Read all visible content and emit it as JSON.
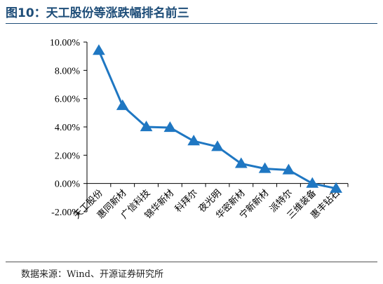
{
  "figure": {
    "title": "图10：天工股份等涨跌幅排名前三",
    "source": "数据来源：Wind、开源证券研究所"
  },
  "colors": {
    "series": "#1F77C2",
    "title": "#1F4E79",
    "axis": "#000000"
  },
  "chart_data": {
    "type": "line",
    "title": "图10：天工股份等涨跌幅排名前三",
    "xlabel": "",
    "ylabel": "",
    "categories": [
      "天工股份",
      "惠同新材",
      "广信科技",
      "锦华新材",
      "科拜尔",
      "夜光明",
      "华密新材",
      "宁新新材",
      "派特尔",
      "三维装备",
      "惠丰钻石"
    ],
    "series": [
      {
        "values": [
          9.4,
          5.5,
          4.0,
          3.95,
          3.0,
          2.6,
          1.4,
          1.05,
          0.95,
          0.0,
          -0.35
        ],
        "marker": "triangle"
      }
    ],
    "ylim": [
      -2,
      10
    ],
    "yticks": [
      -2,
      0,
      2,
      4,
      6,
      8,
      10
    ],
    "ytick_labels": [
      "-2.00%",
      "0.00%",
      "2.00%",
      "4.00%",
      "6.00%",
      "8.00%",
      "10.00%"
    ],
    "grid": false,
    "legend": "none"
  }
}
